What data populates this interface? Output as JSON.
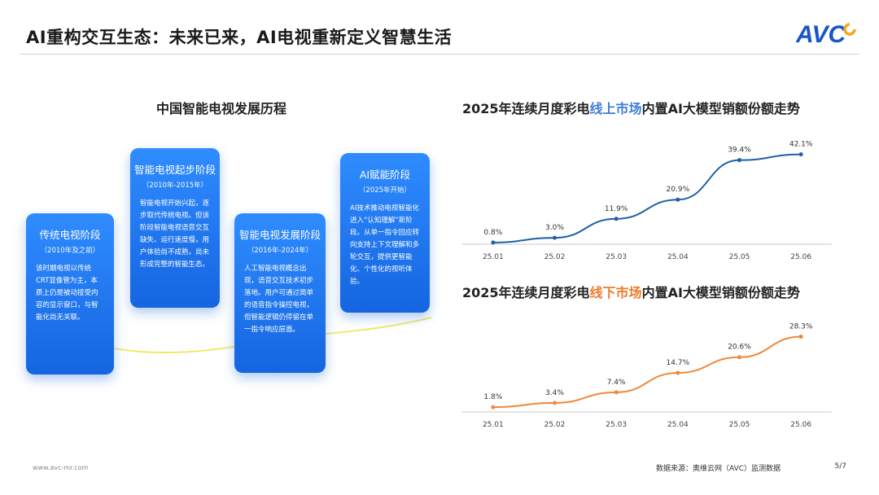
{
  "header": {
    "title": "AI重构交互生态：未来已来，AI电视重新定义智慧生活",
    "logo": "AVC"
  },
  "left": {
    "title": "中国智能电视发展历程",
    "cards": [
      {
        "title": "传统电视阶段",
        "sub": "（2010年及之前）",
        "desc": "该时期电视以传统CRT显像管为主，本质上仍是被动接受内容的显示窗口，与智能化尚无关联。"
      },
      {
        "title": "智能电视起步阶段",
        "sub": "（2010年-2015年）",
        "desc": "智能电视开始兴起，逐步取代传统电视。但该阶段智能电视语音交互缺失、运行速度慢，用户体验尚不成熟，尚未形成完整的智能生态。"
      },
      {
        "title": "智能电视发展阶段",
        "sub": "（2016年-2024年）",
        "desc": "人工智能电视概念出现，语音交互技术初步落地。用户可通过简单的语音指令操控电视，但智能逻辑仍停留在单一指令响应层面。"
      },
      {
        "title": "AI赋能阶段",
        "sub": "（2025年开始）",
        "desc": "AI技术推动电视智能化进入“认知理解”新阶段。从单一指令回应转向支持上下文理解和多轮交互，提供更智能化、个性化的视听体验。"
      }
    ]
  },
  "chart_data": [
    {
      "type": "line",
      "title_prefix": "2025年连续月度彩电",
      "title_highlight": "线上市场",
      "title_suffix": "内置AI大模型销额份额走势",
      "categories": [
        "25.01",
        "25.02",
        "25.03",
        "25.04",
        "25.05",
        "25.06"
      ],
      "values": [
        0.8,
        3.0,
        11.9,
        20.9,
        39.4,
        42.1
      ],
      "labels": [
        "0.8%",
        "3.0%",
        "11.9%",
        "20.9%",
        "39.4%",
        "42.1%"
      ],
      "ylim": [
        0,
        45
      ],
      "color": "#1f5fa8"
    },
    {
      "type": "line",
      "title_prefix": "2025年连续月度彩电",
      "title_highlight": "线下市场",
      "title_suffix": "内置AI大模型销额份额走势",
      "categories": [
        "25.01",
        "25.02",
        "25.03",
        "25.04",
        "25.05",
        "25.06"
      ],
      "values": [
        1.8,
        3.4,
        7.4,
        14.7,
        20.6,
        28.3
      ],
      "labels": [
        "1.8%",
        "3.4%",
        "7.4%",
        "14.7%",
        "20.6%",
        "28.3%"
      ],
      "ylim": [
        0,
        30
      ],
      "color": "#f0883a"
    }
  ],
  "footer": {
    "website": "www.avc-mr.com",
    "source": "数据来源：奥维云网（AVC）监测数据",
    "page": "5/7"
  }
}
